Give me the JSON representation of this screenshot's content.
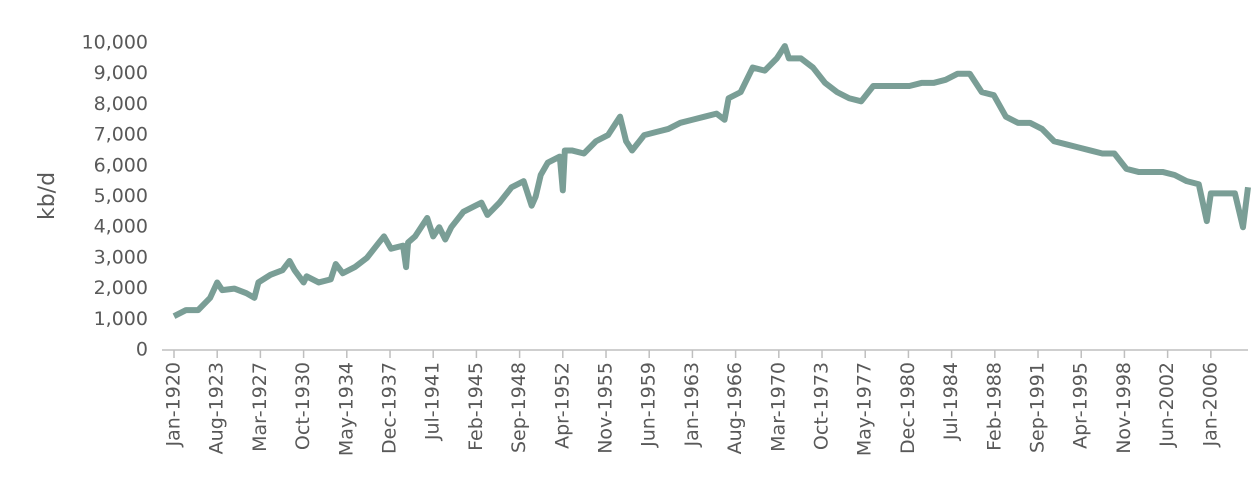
{
  "chart_data": {
    "type": "line",
    "y_label": "kb/d",
    "x": [
      "Jan-1920",
      "Jan-1921",
      "Jan-1922",
      "Jan-1923",
      "Aug-1923",
      "Jan-1924",
      "Jan-1925",
      "Jan-1926",
      "Sep-1926",
      "Jan-1927",
      "Jan-1928",
      "Jan-1929",
      "Aug-1929",
      "Jan-1930",
      "Oct-1930",
      "Jan-1931",
      "Jan-1932",
      "Jan-1933",
      "Jun-1933",
      "Jan-1934",
      "Jan-1935",
      "Jan-1936",
      "Jan-1937",
      "Jun-1937",
      "Jan-1938",
      "Jan-1939",
      "Apr-1939",
      "Jun-1939",
      "Jan-1940",
      "Jan-1941",
      "Jul-1941",
      "Jan-1942",
      "Jul-1942",
      "Jan-1943",
      "Jan-1944",
      "Jan-1945",
      "Jul-1945",
      "Jan-1946",
      "Jan-1947",
      "Jan-1948",
      "Jan-1949",
      "Sep-1949",
      "Jan-1950",
      "Jun-1950",
      "Jan-1951",
      "Jan-1952",
      "Apr-1952",
      "Jun-1952",
      "Jan-1953",
      "Jan-1954",
      "Jan-1955",
      "Jan-1956",
      "Jan-1957",
      "Jul-1957",
      "Jan-1958",
      "Jan-1959",
      "Jan-1960",
      "Jan-1961",
      "Jan-1962",
      "Jan-1963",
      "Jan-1964",
      "Jan-1965",
      "Sep-1965",
      "Jan-1966",
      "Jan-1967",
      "Jan-1968",
      "Jan-1969",
      "Jan-1970",
      "Sep-1970",
      "Jan-1971",
      "Jan-1972",
      "Jan-1973",
      "Jan-1974",
      "Jan-1975",
      "Jan-1976",
      "Jan-1977",
      "Jan-1978",
      "Jan-1979",
      "Jan-1980",
      "Jan-1981",
      "Jan-1982",
      "Jan-1983",
      "Jan-1984",
      "Jan-1985",
      "Jan-1986",
      "Jan-1987",
      "Jan-1988",
      "Jan-1989",
      "Jan-1990",
      "Jan-1991",
      "Jan-1992",
      "Jan-1993",
      "Jan-1994",
      "Jan-1995",
      "Jan-1996",
      "Jan-1997",
      "Jan-1998",
      "Jan-1999",
      "Jan-2000",
      "Jan-2001",
      "Jan-2002",
      "Jan-2003",
      "Jan-2004",
      "Jan-2005",
      "Sep-2005",
      "Jan-2006",
      "Jan-2007",
      "Jan-2008",
      "Sep-2008",
      "Feb-2009"
    ],
    "series": [
      {
        "color": "#7a9e96",
        "values": [
          1100,
          1300,
          1300,
          1700,
          2200,
          1950,
          2000,
          1850,
          1700,
          2200,
          2450,
          2600,
          2900,
          2600,
          2200,
          2400,
          2200,
          2300,
          2800,
          2500,
          2700,
          3000,
          3500,
          3700,
          3300,
          3400,
          2700,
          3500,
          3700,
          4300,
          3700,
          4000,
          3600,
          4000,
          4500,
          4700,
          4800,
          4400,
          4800,
          5300,
          5500,
          4700,
          5000,
          5700,
          6100,
          6300,
          5200,
          6500,
          6500,
          6400,
          6800,
          7000,
          7600,
          6800,
          6500,
          7000,
          7100,
          7200,
          7400,
          7500,
          7600,
          7700,
          7500,
          8200,
          8400,
          9200,
          9100,
          9500,
          9900,
          9500,
          9500,
          9200,
          8700,
          8400,
          8200,
          8100,
          8600,
          8600,
          8600,
          8600,
          8700,
          8700,
          8800,
          9000,
          9000,
          8400,
          8300,
          7600,
          7400,
          7400,
          7200,
          6800,
          6700,
          6600,
          6500,
          6400,
          6400,
          5900,
          5800,
          5800,
          5800,
          5700,
          5500,
          5400,
          4200,
          5100,
          5100,
          5100,
          4000,
          5300
        ]
      }
    ],
    "xlim": [
      "Jan-1920",
      "Feb-2009"
    ],
    "xticks": [
      "Jan-1920",
      "Aug-1923",
      "Mar-1927",
      "Oct-1930",
      "May-1934",
      "Dec-1937",
      "Jul-1941",
      "Feb-1945",
      "Sep-1948",
      "Apr-1952",
      "Nov-1955",
      "Jun-1959",
      "Jan-1963",
      "Aug-1966",
      "Mar-1970",
      "Oct-1973",
      "May-1977",
      "Dec-1980",
      "Jul-1984",
      "Feb-1988",
      "Sep-1991",
      "Apr-1995",
      "Nov-1998",
      "Jun-2002",
      "Jan-2006"
    ],
    "ylim": [
      0,
      10000
    ],
    "yticks": [
      0,
      {
        "value": 1000,
        "label": "1,000"
      },
      {
        "value": 2000,
        "label": "2,000"
      },
      {
        "value": 3000,
        "label": "3,000"
      },
      {
        "value": 4000,
        "label": "4,000"
      },
      {
        "value": 5000,
        "label": "5,000"
      },
      {
        "value": 6000,
        "label": "6,000"
      },
      {
        "value": 7000,
        "label": "7,000"
      },
      {
        "value": 8000,
        "label": "8,000"
      },
      {
        "value": 9000,
        "label": "9,000"
      },
      {
        "value": 10000,
        "label": "10,000"
      }
    ],
    "grid": false
  }
}
